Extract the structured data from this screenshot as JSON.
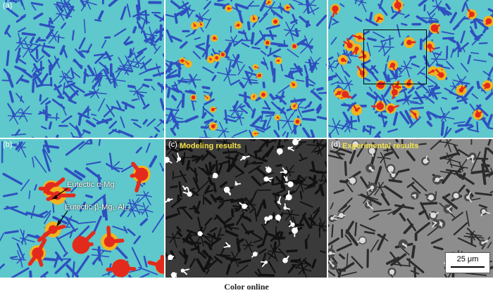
{
  "panels": {
    "a": {
      "label": "(a)"
    },
    "b": {
      "label": "(b)"
    },
    "c": {
      "label": "(c)"
    },
    "d": {
      "label": "(d)"
    }
  },
  "annotations": {
    "eutectic_alpha": "Eutectic α-Mg",
    "eutectic_beta": "Eutectic β-Mg₁₇Al₁₂"
  },
  "modeling": {
    "label": "Modeling results"
  },
  "experimental": {
    "label": "Experimental results"
  },
  "scale_bar": {
    "text": "25 μm"
  },
  "caption": "Color online",
  "colors": {
    "matrix": "#5ec8cc",
    "grain_boundary": "#2f4fc0",
    "beta_phase": "#e22b1d",
    "alpha_eutectic": "#f0b51e",
    "sem_dark": "#2b2b2b",
    "sem_gray": "#8d8d8d",
    "label_yellow": "#f2e24a"
  }
}
